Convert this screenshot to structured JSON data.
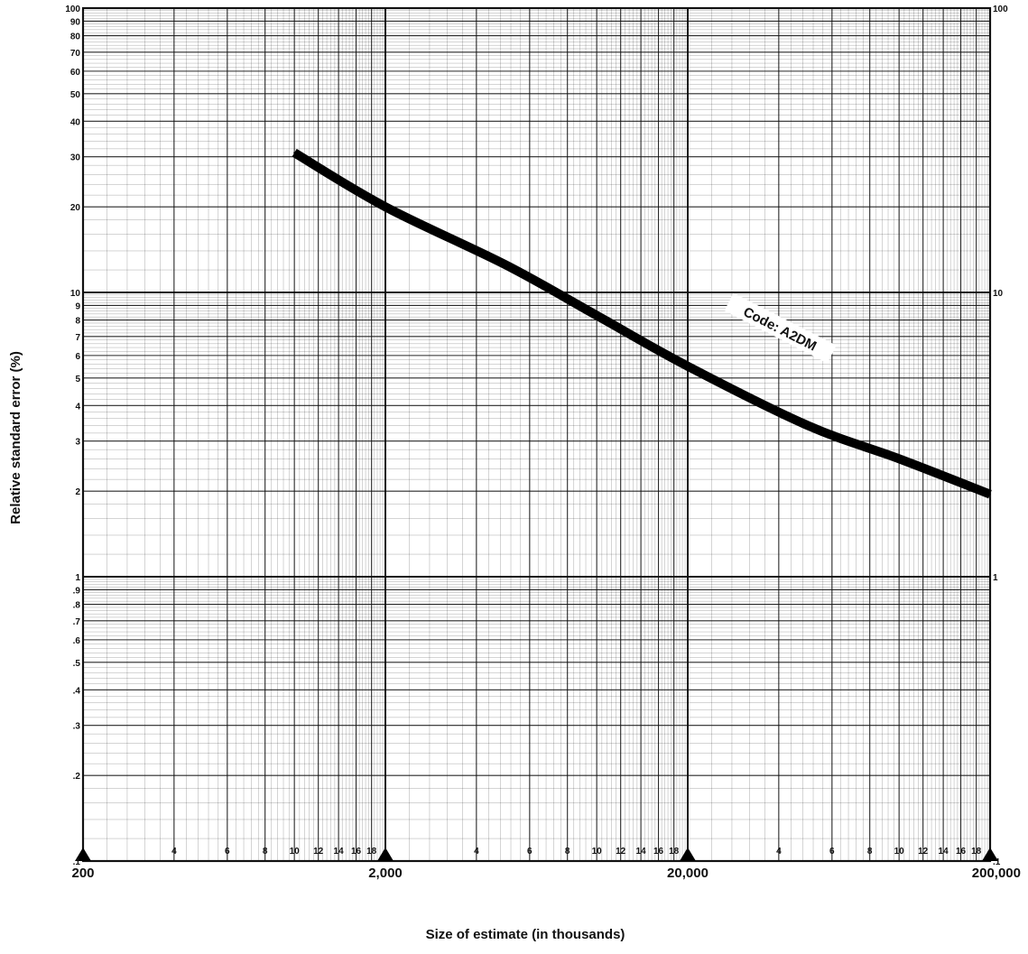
{
  "chart_data": {
    "type": "line",
    "title": "",
    "xlabel": "Size of estimate (in thousands)",
    "ylabel": "Relative standard error (%)",
    "xscale": "log",
    "yscale": "log",
    "xlim": [
      200,
      200000
    ],
    "ylim": [
      0.1,
      100
    ],
    "grid": true,
    "x_major_ticks": [
      {
        "value": 200,
        "label": "200"
      },
      {
        "value": 2000,
        "label": "2,000"
      },
      {
        "value": 20000,
        "label": "20,000"
      },
      {
        "value": 200000,
        "label": "200,000"
      }
    ],
    "x_minor_ticks": [
      {
        "value": 400,
        "label": "4"
      },
      {
        "value": 600,
        "label": "6"
      },
      {
        "value": 800,
        "label": "8"
      },
      {
        "value": 1000,
        "label": "10"
      },
      {
        "value": 1200,
        "label": "12"
      },
      {
        "value": 1400,
        "label": "14"
      },
      {
        "value": 1600,
        "label": "16"
      },
      {
        "value": 1800,
        "label": "18"
      },
      {
        "value": 4000,
        "label": "4"
      },
      {
        "value": 6000,
        "label": "6"
      },
      {
        "value": 8000,
        "label": "8"
      },
      {
        "value": 10000,
        "label": "10"
      },
      {
        "value": 12000,
        "label": "12"
      },
      {
        "value": 14000,
        "label": "14"
      },
      {
        "value": 16000,
        "label": "16"
      },
      {
        "value": 18000,
        "label": "18"
      },
      {
        "value": 40000,
        "label": "4"
      },
      {
        "value": 60000,
        "label": "6"
      },
      {
        "value": 80000,
        "label": "8"
      },
      {
        "value": 100000,
        "label": "10"
      },
      {
        "value": 120000,
        "label": "12"
      },
      {
        "value": 140000,
        "label": "14"
      },
      {
        "value": 160000,
        "label": "16"
      },
      {
        "value": 180000,
        "label": "18"
      }
    ],
    "y_ticks_left": [
      {
        "value": 100,
        "label": "100"
      },
      {
        "value": 90,
        "label": "90"
      },
      {
        "value": 80,
        "label": "80"
      },
      {
        "value": 70,
        "label": "70"
      },
      {
        "value": 60,
        "label": "60"
      },
      {
        "value": 50,
        "label": "50"
      },
      {
        "value": 40,
        "label": "40"
      },
      {
        "value": 30,
        "label": "30"
      },
      {
        "value": 20,
        "label": "20"
      },
      {
        "value": 10,
        "label": "10"
      },
      {
        "value": 9,
        "label": "9"
      },
      {
        "value": 8,
        "label": "8"
      },
      {
        "value": 7,
        "label": "7"
      },
      {
        "value": 6,
        "label": "6"
      },
      {
        "value": 5,
        "label": "5"
      },
      {
        "value": 4,
        "label": "4"
      },
      {
        "value": 3,
        "label": "3"
      },
      {
        "value": 2,
        "label": "2"
      },
      {
        "value": 1,
        "label": "1"
      },
      {
        "value": 0.9,
        "label": ".9"
      },
      {
        "value": 0.8,
        "label": ".8"
      },
      {
        "value": 0.7,
        "label": ".7"
      },
      {
        "value": 0.6,
        "label": ".6"
      },
      {
        "value": 0.5,
        "label": ".5"
      },
      {
        "value": 0.4,
        "label": ".4"
      },
      {
        "value": 0.3,
        "label": ".3"
      },
      {
        "value": 0.2,
        "label": ".2"
      },
      {
        "value": 0.1,
        "label": ".1"
      }
    ],
    "y_ticks_right": [
      {
        "value": 100,
        "label": "100"
      },
      {
        "value": 10,
        "label": "10"
      },
      {
        "value": 1,
        "label": "1"
      },
      {
        "value": 0.1,
        "label": ".1"
      }
    ],
    "series": [
      {
        "x": [
          1000,
          2000,
          5000,
          10000,
          20000,
          50000,
          100000,
          200000
        ],
        "y": [
          31,
          20,
          12.5,
          8.3,
          5.5,
          3.4,
          2.6,
          1.95
        ]
      }
    ],
    "annotations": [
      {
        "text": "Code:  A2DM",
        "x": 40000,
        "y": 7.3
      }
    ],
    "colors": {
      "grid": "#111111",
      "curve": "#000000",
      "background": "#ffffff"
    }
  }
}
